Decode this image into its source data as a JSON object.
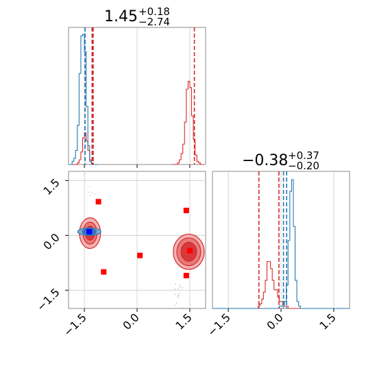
{
  "chart_data": {
    "type": "corner",
    "panel_titles": {
      "param1": {
        "value": "1.45",
        "plus": "+0.18",
        "minus": "−2.74"
      },
      "param2": {
        "value": "−0.38",
        "plus": "+0.37",
        "minus": "−0.20"
      }
    },
    "axes": {
      "x_range": [
        -1.95,
        1.95
      ],
      "y_range": [
        -2.0,
        1.75
      ],
      "ticks": [
        -1.5,
        0.0,
        1.5
      ],
      "tick_labels": [
        "−1.5",
        "0.0",
        "1.5"
      ]
    },
    "grid": true,
    "colors": {
      "red": "#d62728",
      "blue": "#1f77b4",
      "marker_red": "#ff0000",
      "marker_blue": "#0000ff",
      "frame": "#888888",
      "grid": "#cccccc"
    },
    "hist_param1": {
      "bin_start": -1.95,
      "bin_width": 0.05,
      "blue_counts": [
        0,
        0,
        2,
        4,
        9,
        25,
        58,
        82,
        83,
        72,
        37,
        12,
        2,
        0,
        0,
        0,
        0
      ],
      "red_counts_left": [
        0,
        0,
        0,
        0,
        0,
        1,
        3,
        8,
        17,
        20,
        15,
        9,
        3,
        1,
        0,
        0,
        0
      ],
      "red_counts_right_start": 1.0,
      "red_counts_right": [
        0,
        0,
        0,
        1,
        3,
        7,
        13,
        27,
        48,
        53,
        49,
        31,
        16,
        6,
        2,
        1,
        0,
        0
      ],
      "blue_lines": [
        -1.48,
        -1.26
      ],
      "red_lines": [
        -1.28,
        -1.25,
        1.63
      ]
    },
    "hist_param2": {
      "bin_start": -1.95,
      "bin_width": 0.05,
      "red_counts": [
        0,
        0,
        0,
        0,
        0,
        0,
        0,
        0,
        0,
        0,
        0,
        0,
        0,
        0,
        0,
        0,
        0,
        0,
        0,
        0,
        0,
        0,
        0,
        0,
        0,
        0,
        1,
        2,
        4,
        7,
        12,
        20,
        20,
        17,
        12,
        8,
        8,
        5,
        3,
        3,
        1,
        1,
        1,
        0,
        0,
        0,
        0,
        0,
        0,
        0,
        0,
        0,
        0,
        0,
        0,
        0,
        0,
        0,
        0,
        0,
        0,
        0,
        0,
        0,
        0,
        0,
        0,
        0,
        0,
        0,
        0,
        0,
        0,
        0,
        0,
        0,
        0,
        0
      ],
      "blue_counts": [
        0,
        0,
        0,
        0,
        0,
        0,
        0,
        0,
        0,
        0,
        0,
        0,
        0,
        0,
        0,
        0,
        0,
        0,
        0,
        0,
        0,
        0,
        0,
        0,
        0,
        0,
        0,
        0,
        0,
        0,
        0,
        0,
        0,
        0,
        0,
        0,
        0,
        0,
        1,
        1,
        1,
        3,
        10,
        29,
        50,
        55,
        35,
        12,
        3,
        1,
        0,
        0,
        0,
        0,
        0,
        0,
        0,
        0,
        0,
        0,
        0,
        0,
        0,
        0,
        0,
        0,
        0,
        0,
        0,
        0,
        0,
        0,
        0,
        0,
        0,
        0,
        0,
        0
      ],
      "red_lines": [
        -0.63,
        -0.06
      ],
      "blue_lines": [
        0.07,
        0.16
      ]
    },
    "scatter": {
      "red_squares": [
        {
          "x": -1.1,
          "y": 0.92
        },
        {
          "x": 1.4,
          "y": 0.68
        },
        {
          "x": 0.08,
          "y": -0.55
        },
        {
          "x": -0.95,
          "y": -1.0
        },
        {
          "x": 1.4,
          "y": -1.1
        },
        {
          "x": 1.5,
          "y": -0.42
        }
      ],
      "blue_squares": [
        {
          "x": -1.36,
          "y": 0.1
        }
      ],
      "red_contour_left": {
        "cx": -1.34,
        "cy": 0.06,
        "levels": [
          [
            0.3,
            0.42
          ],
          [
            0.2,
            0.3
          ],
          [
            0.13,
            0.19
          ]
        ]
      },
      "blue_contour_left": {
        "cx": -1.36,
        "cy": 0.1,
        "levels": [
          [
            0.33,
            0.1
          ],
          [
            0.2,
            0.08
          ]
        ]
      },
      "red_contour_right": {
        "cx": 1.47,
        "cy": -0.45,
        "levels": [
          [
            0.44,
            0.48
          ],
          [
            0.34,
            0.38
          ],
          [
            0.22,
            0.26
          ]
        ]
      }
    }
  }
}
